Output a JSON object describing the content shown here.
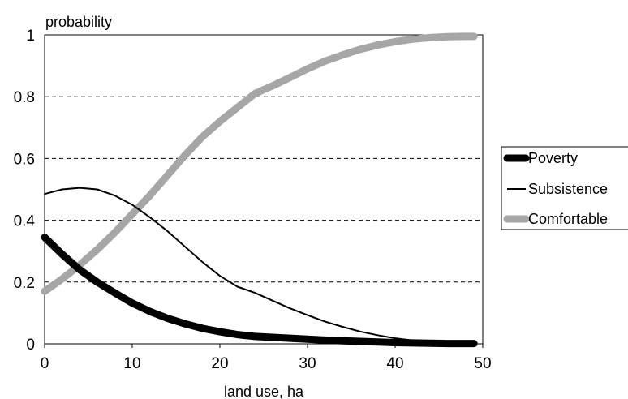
{
  "chart_data": {
    "type": "line",
    "title": "",
    "xlabel": "land use, ha",
    "ylabel": "probability",
    "xlim": [
      0,
      50
    ],
    "ylim": [
      0,
      1
    ],
    "xticks": [
      "0",
      "10",
      "20",
      "30",
      "40",
      "50"
    ],
    "yticks": [
      "0",
      "0.2",
      "0.4",
      "0.6",
      "0.8",
      "1"
    ],
    "grid": "horizontal dashed",
    "legend_position": "right",
    "series": [
      {
        "name": "Poverty",
        "color": "#000000",
        "style": "very thick",
        "x": [
          0,
          2,
          4,
          6,
          8,
          10,
          12,
          14,
          16,
          18,
          20,
          22,
          24,
          26,
          28,
          30,
          32,
          34,
          36,
          38,
          40,
          42,
          44,
          46,
          48,
          49
        ],
        "y": [
          0.345,
          0.29,
          0.24,
          0.2,
          0.165,
          0.132,
          0.105,
          0.083,
          0.065,
          0.05,
          0.039,
          0.03,
          0.024,
          0.021,
          0.018,
          0.015,
          0.012,
          0.01,
          0.008,
          0.006,
          0.004,
          0.003,
          0.002,
          0.001,
          0.001,
          0.001
        ]
      },
      {
        "name": "Subsistence",
        "color": "#000000",
        "style": "thin",
        "x": [
          0,
          2,
          4,
          6,
          8,
          10,
          12,
          14,
          16,
          18,
          20,
          22,
          24,
          26,
          28,
          30,
          32,
          34,
          36,
          38,
          40,
          42,
          44,
          46,
          48,
          49
        ],
        "y": [
          0.485,
          0.5,
          0.505,
          0.5,
          0.48,
          0.45,
          0.41,
          0.365,
          0.315,
          0.265,
          0.22,
          0.185,
          0.165,
          0.14,
          0.115,
          0.093,
          0.072,
          0.055,
          0.04,
          0.028,
          0.018,
          0.011,
          0.006,
          0.003,
          0.001,
          0.001
        ]
      },
      {
        "name": "Comfortable",
        "color": "#a6a6a6",
        "style": "very thick",
        "x": [
          0,
          2,
          4,
          6,
          8,
          10,
          12,
          14,
          16,
          18,
          20,
          22,
          24,
          26,
          28,
          30,
          32,
          34,
          36,
          38,
          40,
          42,
          44,
          46,
          48,
          49
        ],
        "y": [
          0.17,
          0.21,
          0.255,
          0.305,
          0.36,
          0.42,
          0.48,
          0.545,
          0.61,
          0.67,
          0.72,
          0.765,
          0.81,
          0.835,
          0.862,
          0.89,
          0.915,
          0.935,
          0.953,
          0.967,
          0.978,
          0.986,
          0.991,
          0.994,
          0.995,
          0.995
        ]
      }
    ]
  }
}
